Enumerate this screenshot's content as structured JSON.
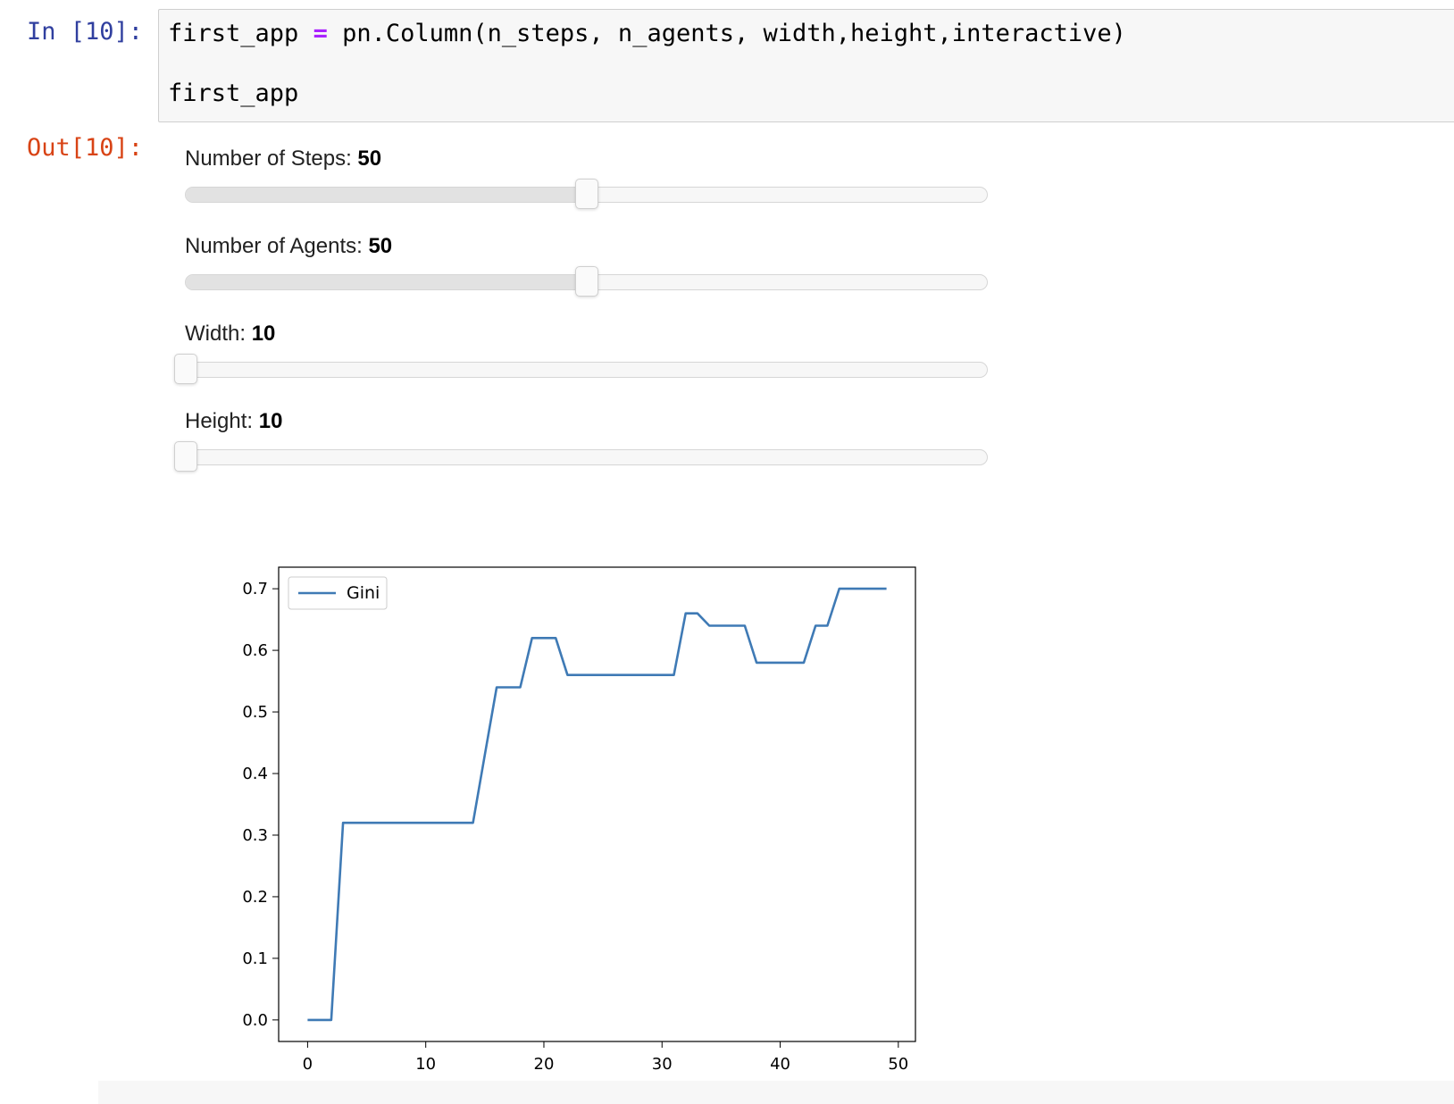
{
  "notebook": {
    "in_prompt": "In [10]:",
    "out_prompt": "Out[10]:",
    "code": {
      "line1_pre": "first_app ",
      "line1_op": "=",
      "line1_post": " pn.Column(n_steps, n_agents, width,height,interactive)",
      "line2": "first_app"
    }
  },
  "widgets": [
    {
      "label": "Number of Steps: ",
      "value": "50",
      "fraction": 0.5
    },
    {
      "label": "Number of Agents: ",
      "value": "50",
      "fraction": 0.5
    },
    {
      "label": "Width: ",
      "value": "10",
      "fraction": 0.0
    },
    {
      "label": "Height: ",
      "value": "10",
      "fraction": 0.0
    }
  ],
  "colors": {
    "line": "#3f7ab5",
    "in_prompt": "#303f9f",
    "out_prompt": "#d84315",
    "operator": "#aa22ff"
  },
  "chart_data": {
    "type": "line",
    "title": "",
    "xlabel": "",
    "ylabel": "",
    "xlim": [
      -2.45,
      51.45
    ],
    "ylim": [
      -0.035,
      0.735
    ],
    "xticks": [
      0,
      10,
      20,
      30,
      40,
      50
    ],
    "yticks": [
      0.0,
      0.1,
      0.2,
      0.3,
      0.4,
      0.5,
      0.6,
      0.7
    ],
    "xtick_labels": [
      "0",
      "10",
      "20",
      "30",
      "40",
      "50"
    ],
    "ytick_labels": [
      "0.0",
      "0.1",
      "0.2",
      "0.3",
      "0.4",
      "0.5",
      "0.6",
      "0.7"
    ],
    "legend": "top-left",
    "grid": false,
    "series": [
      {
        "name": "Gini",
        "x": [
          0,
          1,
          2,
          3,
          4,
          5,
          6,
          7,
          8,
          9,
          10,
          11,
          12,
          13,
          14,
          15,
          16,
          17,
          18,
          19,
          20,
          21,
          22,
          23,
          24,
          25,
          26,
          27,
          28,
          29,
          30,
          31,
          32,
          33,
          34,
          35,
          36,
          37,
          38,
          39,
          40,
          41,
          42,
          43,
          44,
          45,
          46,
          47,
          48,
          49
        ],
        "y": [
          0.0,
          0.0,
          0.0,
          0.32,
          0.32,
          0.32,
          0.32,
          0.32,
          0.32,
          0.32,
          0.32,
          0.32,
          0.32,
          0.32,
          0.32,
          0.43,
          0.54,
          0.54,
          0.54,
          0.62,
          0.62,
          0.62,
          0.56,
          0.56,
          0.56,
          0.56,
          0.56,
          0.56,
          0.56,
          0.56,
          0.56,
          0.56,
          0.66,
          0.66,
          0.64,
          0.64,
          0.64,
          0.64,
          0.58,
          0.58,
          0.58,
          0.58,
          0.58,
          0.64,
          0.64,
          0.7,
          0.7,
          0.7,
          0.7,
          0.7
        ]
      }
    ]
  }
}
